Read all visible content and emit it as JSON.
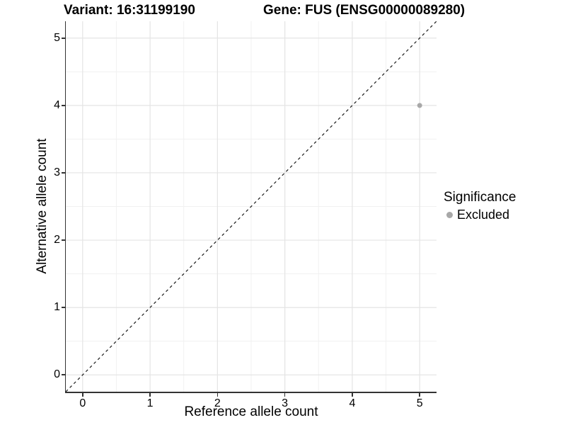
{
  "chart_data": {
    "type": "scatter",
    "titles": {
      "left": "Variant: 16:31199190",
      "right": "Gene: FUS (ENSG00000089280)"
    },
    "xlabel": "Reference allele count",
    "ylabel": "Alternative allele count",
    "xlim": [
      -0.25,
      5.25
    ],
    "ylim": [
      -0.25,
      5.25
    ],
    "xticks": [
      0,
      1,
      2,
      3,
      4,
      5
    ],
    "yticks": [
      0,
      1,
      2,
      3,
      4,
      5
    ],
    "xticks_minor": [
      0.5,
      1.5,
      2.5,
      3.5,
      4.5
    ],
    "yticks_minor": [
      0.5,
      1.5,
      2.5,
      3.5,
      4.5
    ],
    "grid": {
      "major": true,
      "minor": true
    },
    "reference_line": {
      "type": "identity",
      "style": "dashed",
      "from": [
        -0.25,
        -0.25
      ],
      "to": [
        5.25,
        5.25
      ]
    },
    "points": [
      {
        "x": 5,
        "y": 4,
        "significance": "Excluded"
      }
    ],
    "legend": {
      "title": "Significance",
      "position": "right",
      "items": [
        {
          "label": "Excluded",
          "color": "#a8a8a8",
          "marker": "circle"
        }
      ]
    }
  },
  "colors": {
    "background": "#ffffff",
    "point": "#a8a8a8",
    "grid_major": "#e4e4e4",
    "grid_minor": "#f1f1f1",
    "axis_line": "#333333",
    "dashed_line": "#1a1a1a",
    "text": "#000000"
  }
}
